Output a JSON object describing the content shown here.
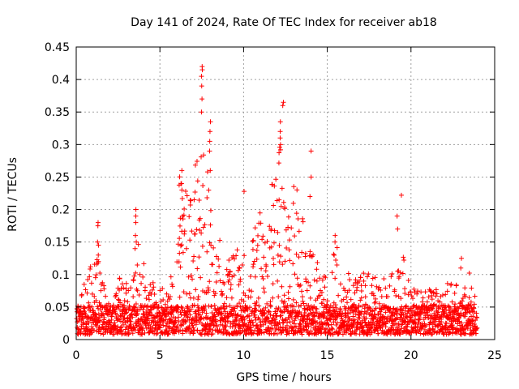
{
  "chart_data": {
    "type": "scatter",
    "title": "Day 141 of 2024, Rate Of TEC Index for receiver ab18",
    "xlabel": "GPS time / hours",
    "ylabel": "ROTI / TECUs",
    "xlim": [
      0,
      25
    ],
    "ylim": [
      0,
      0.45
    ],
    "xticks": [
      "0",
      "5",
      "10",
      "15",
      "20",
      "25"
    ],
    "yticks": [
      "0",
      "0.05",
      "0.1",
      "0.15",
      "0.2",
      "0.25",
      "0.3",
      "0.35",
      "0.4",
      "0.45"
    ],
    "grid": true,
    "marker": "+",
    "color": "#ff0000",
    "series": [
      {
        "name": "ROTI",
        "envelope_x": [
          0,
          0.3,
          0.7,
          1.2,
          1.5,
          2.0,
          2.7,
          3.2,
          3.6,
          4.2,
          5.0,
          5.8,
          6.2,
          6.6,
          7.0,
          7.5,
          8.0,
          8.3,
          8.8,
          9.5,
          10.0,
          10.5,
          11.0,
          11.5,
          12.0,
          12.3,
          12.7,
          13.2,
          13.8,
          14.3,
          15.0,
          15.5,
          16.5,
          17.5,
          18.2,
          19.0,
          19.4,
          20.0,
          20.8,
          21.5,
          22.3,
          23.0,
          23.5,
          24.0
        ],
        "envelope_y": [
          0.05,
          0.06,
          0.1,
          0.13,
          0.09,
          0.06,
          0.1,
          0.08,
          0.16,
          0.09,
          0.07,
          0.1,
          0.26,
          0.22,
          0.25,
          0.3,
          0.26,
          0.2,
          0.13,
          0.14,
          0.12,
          0.15,
          0.19,
          0.2,
          0.28,
          0.3,
          0.22,
          0.25,
          0.14,
          0.12,
          0.09,
          0.14,
          0.09,
          0.1,
          0.08,
          0.12,
          0.15,
          0.08,
          0.07,
          0.07,
          0.09,
          0.07,
          0.1,
          0.05
        ],
        "spikes": [
          {
            "x": 1.3,
            "y": [
              0.12,
              0.13,
              0.145,
              0.15,
              0.175,
              0.18
            ]
          },
          {
            "x": 3.55,
            "y": [
              0.14,
              0.15,
              0.16,
              0.18,
              0.19,
              0.2
            ]
          },
          {
            "x": 6.3,
            "y": [
              0.23,
              0.24,
              0.26
            ]
          },
          {
            "x": 7.5,
            "y": [
              0.35,
              0.37,
              0.39,
              0.405,
              0.415,
              0.42
            ]
          },
          {
            "x": 8.0,
            "y": [
              0.26,
              0.29,
              0.305,
              0.32,
              0.335
            ]
          },
          {
            "x": 12.2,
            "y": [
              0.3,
              0.31,
              0.32,
              0.335
            ]
          },
          {
            "x": 12.35,
            "y": [
              0.36,
              0.365
            ]
          },
          {
            "x": 10.0,
            "y": [
              0.228
            ]
          },
          {
            "x": 14.0,
            "y": [
              0.22,
              0.25,
              0.29
            ]
          },
          {
            "x": 15.5,
            "y": [
              0.15,
              0.16
            ]
          },
          {
            "x": 19.2,
            "y": [
              0.17,
              0.19
            ]
          },
          {
            "x": 19.4,
            "y": [
              0.222
            ]
          },
          {
            "x": 23.0,
            "y": [
              0.11,
              0.125
            ]
          }
        ]
      }
    ]
  }
}
